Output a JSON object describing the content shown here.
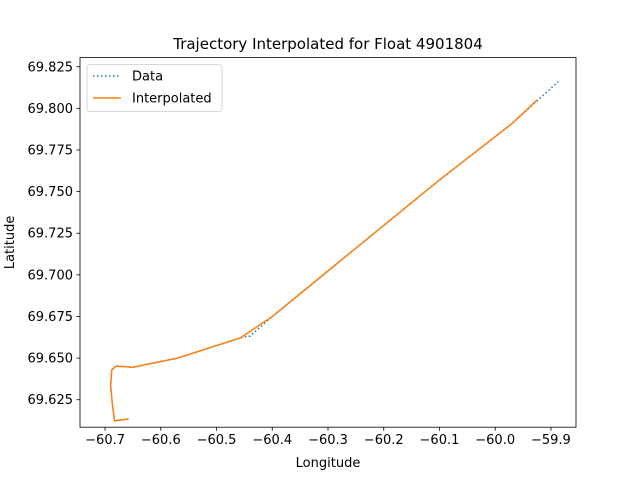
{
  "chart_data": {
    "type": "line",
    "title": "Trajectory Interpolated for Float 4901804",
    "xlabel": "Longitude",
    "ylabel": "Latitude",
    "xlim": [
      -60.745,
      -59.855
    ],
    "ylim": [
      69.6085,
      69.8305
    ],
    "xticks": [
      -60.7,
      -60.6,
      -60.5,
      -60.4,
      -60.3,
      -60.2,
      -60.1,
      -60.0,
      -59.9
    ],
    "xtick_labels": [
      "−60.7",
      "−60.6",
      "−60.5",
      "−60.4",
      "−60.3",
      "−60.2",
      "−60.1",
      "−60.0",
      "−59.9"
    ],
    "yticks": [
      69.625,
      69.65,
      69.675,
      69.7,
      69.725,
      69.75,
      69.775,
      69.8,
      69.825
    ],
    "ytick_labels": [
      "69.625",
      "69.650",
      "69.675",
      "69.700",
      "69.725",
      "69.750",
      "69.775",
      "69.800",
      "69.825"
    ],
    "grid": false,
    "legend_position": "top-left",
    "series": [
      {
        "name": "Data",
        "style": "dotted",
        "color": "#1f77b4",
        "points": [
          [
            -60.658,
            69.6135
          ],
          [
            -60.683,
            69.6123
          ],
          [
            -60.687,
            69.6225
          ],
          [
            -60.69,
            69.6335
          ],
          [
            -60.688,
            69.643
          ],
          [
            -60.68,
            69.6452
          ],
          [
            -60.65,
            69.6445
          ],
          [
            -60.57,
            69.65
          ],
          [
            -60.457,
            69.6622
          ],
          [
            -60.44,
            69.6632
          ],
          [
            -60.4,
            69.675
          ],
          [
            -60.2,
            69.7297
          ],
          [
            -60.1,
            69.757
          ],
          [
            -59.97,
            69.7908
          ],
          [
            -59.887,
            69.816
          ]
        ]
      },
      {
        "name": "Interpolated",
        "style": "solid",
        "color": "#ff7f0e",
        "points": [
          [
            -60.658,
            69.6135
          ],
          [
            -60.683,
            69.6123
          ],
          [
            -60.687,
            69.6225
          ],
          [
            -60.69,
            69.6335
          ],
          [
            -60.688,
            69.643
          ],
          [
            -60.68,
            69.6452
          ],
          [
            -60.65,
            69.6445
          ],
          [
            -60.57,
            69.65
          ],
          [
            -60.457,
            69.6622
          ],
          [
            -60.4,
            69.675
          ],
          [
            -60.2,
            69.7297
          ],
          [
            -60.1,
            69.757
          ],
          [
            -59.97,
            69.7908
          ],
          [
            -59.925,
            69.805
          ]
        ]
      }
    ]
  }
}
